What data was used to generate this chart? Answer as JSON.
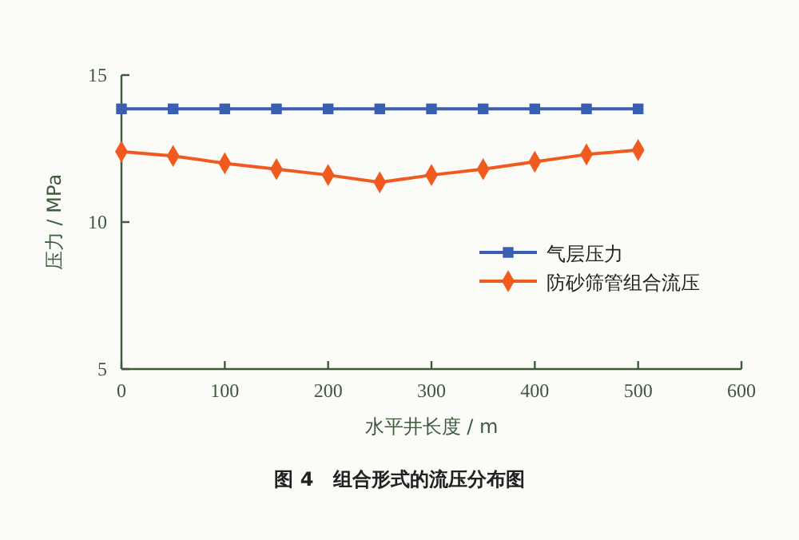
{
  "chart_data": {
    "type": "line",
    "xlabel": "水平井长度 / m",
    "ylabel": "压力 / MPa",
    "x": [
      0,
      50,
      100,
      150,
      200,
      250,
      300,
      350,
      400,
      450,
      500
    ],
    "series": [
      {
        "name": "气层压力",
        "color": "#3b5fb0",
        "marker": "square",
        "values": [
          13.85,
          13.85,
          13.85,
          13.85,
          13.85,
          13.85,
          13.85,
          13.85,
          13.85,
          13.85,
          13.85
        ]
      },
      {
        "name": "防砂筛管组合流压",
        "color": "#f05a1e",
        "marker": "diamond",
        "values": [
          12.4,
          12.25,
          12.0,
          11.8,
          11.6,
          11.35,
          11.6,
          11.8,
          12.05,
          12.3,
          12.45
        ]
      }
    ],
    "xlim": [
      0,
      600
    ],
    "xticks": [
      0,
      100,
      200,
      300,
      400,
      500,
      600
    ],
    "ylim": [
      5,
      15
    ],
    "yticks": [
      5,
      10,
      15
    ],
    "grid": false,
    "legend": "right",
    "line_style": "solid",
    "annotations": [
      "图 4　组合形式的流压分布图"
    ]
  }
}
